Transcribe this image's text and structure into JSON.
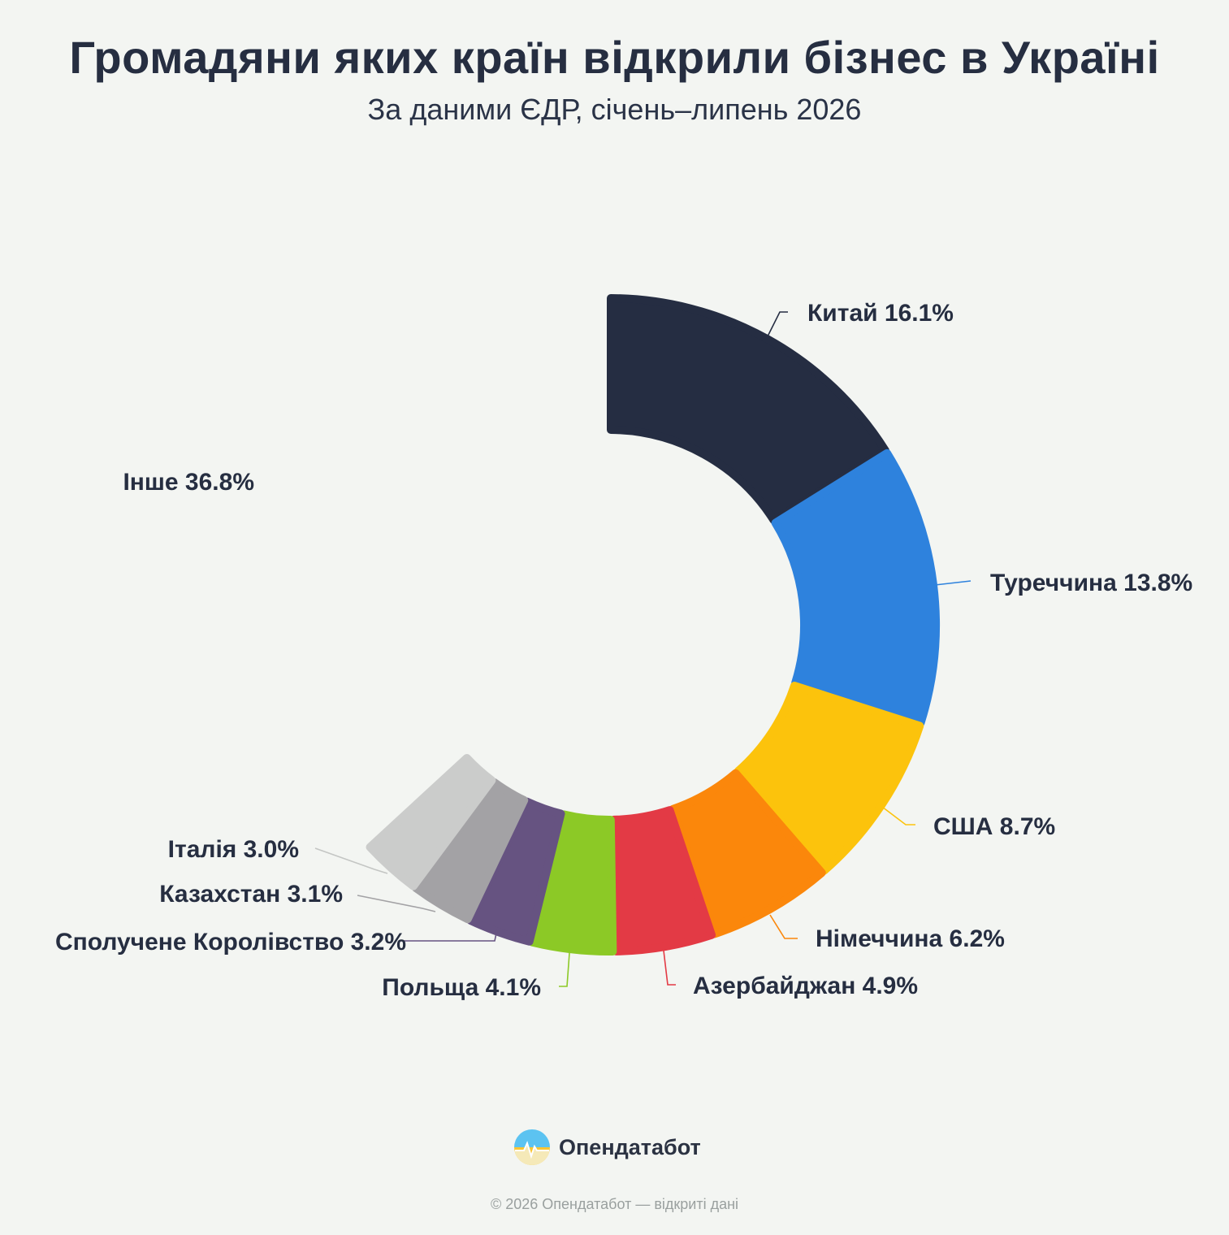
{
  "title": "Громадяни яких країн відкрили бізнес в Україні",
  "subtitle": "За даними ЄДР, січень–липень 2026",
  "brand": {
    "name": "Опендатабот",
    "logo_icon": "opendatabot-logo-icon"
  },
  "footer": "© 2026 Опендатабот — відкриті дані",
  "chart_data": {
    "type": "pie",
    "variant": "donut",
    "unit": "%",
    "slices": [
      {
        "label": "Китай",
        "value": 16.1,
        "color": "#252d42",
        "shown": true
      },
      {
        "label": "Туреччина",
        "value": 13.8,
        "color": "#2e82dd",
        "shown": true
      },
      {
        "label": "США",
        "value": 8.7,
        "color": "#fcc30c",
        "shown": true
      },
      {
        "label": "Німеччина",
        "value": 6.2,
        "color": "#fb870b",
        "shown": true
      },
      {
        "label": "Азербайджан",
        "value": 4.9,
        "color": "#e33a45",
        "shown": true
      },
      {
        "label": "Польща",
        "value": 4.1,
        "color": "#8cc926",
        "shown": true
      },
      {
        "label": "Сполучене Королівство",
        "value": 3.2,
        "color": "#665381",
        "shown": true
      },
      {
        "label": "Казахстан",
        "value": 3.1,
        "color": "#a3a2a5",
        "shown": true
      },
      {
        "label": "Італія",
        "value": 3.0,
        "color": "#cbcccb",
        "shown": true
      },
      {
        "label": "Інше",
        "value": 36.8,
        "color": "#f3f5f2",
        "shown": false
      }
    ]
  }
}
